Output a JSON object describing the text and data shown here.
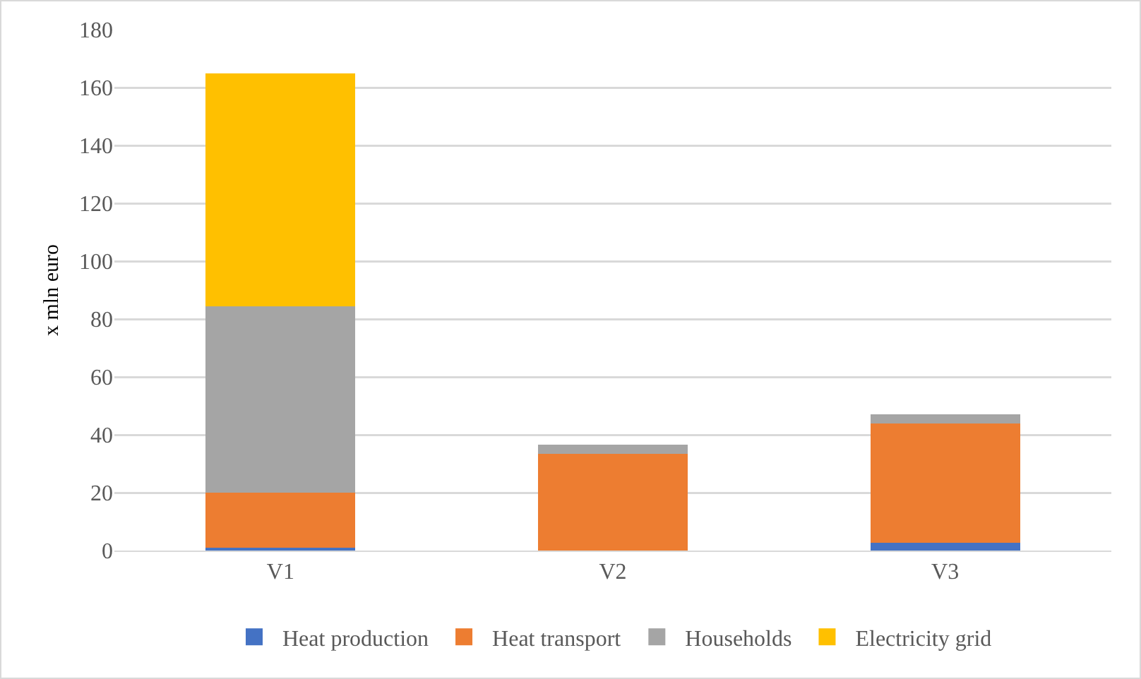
{
  "chart_data": {
    "type": "bar",
    "stacked": true,
    "ylabel": "x mln euro",
    "categories": [
      "V1",
      "V2",
      "V3"
    ],
    "series": [
      {
        "name": "Heat production",
        "color": "#4472c4",
        "values": [
          1,
          0,
          2.7
        ]
      },
      {
        "name": "Heat transport",
        "color": "#ed7d31",
        "values": [
          19,
          33.5,
          41.3
        ]
      },
      {
        "name": "Households",
        "color": "#a5a5a5",
        "values": [
          64.5,
          3,
          3
        ]
      },
      {
        "name": "Electricity grid",
        "color": "#ffc000",
        "values": [
          80.5,
          0,
          0
        ]
      }
    ],
    "ylim": [
      0,
      180
    ],
    "yticks": [
      0,
      20,
      40,
      60,
      80,
      100,
      120,
      140,
      160,
      180
    ],
    "grid": "y",
    "legend": "bottom"
  }
}
